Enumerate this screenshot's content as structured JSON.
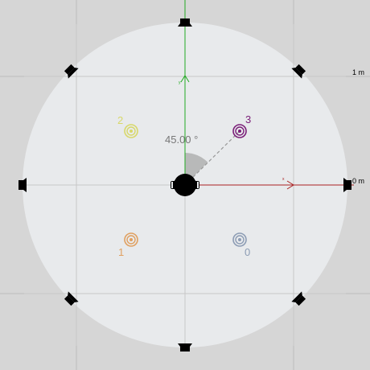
{
  "scale": {
    "outer_label": "1 m",
    "inner_label": "0 m"
  },
  "angle": {
    "readout": "45.00 °",
    "degrees": 45
  },
  "axes": {
    "x_label": "x",
    "y_label": "y",
    "x_color": "#aa2222",
    "y_color": "#22aa22"
  },
  "colors": {
    "background": "#d6d6d6",
    "disc": "#e8eaec",
    "grid": "#bcbcbc",
    "speaker": "#000000",
    "angle_wedge": "#a8a8a8"
  },
  "sources": [
    {
      "label": "0",
      "color": "#8c9cb4"
    },
    {
      "label": "1",
      "color": "#e0a060"
    },
    {
      "label": "2",
      "color": "#d8d86a"
    },
    {
      "label": "3",
      "color": "#7a1e78"
    }
  ],
  "speaker_count": 8,
  "listener": {
    "icon": "listener-head-icon"
  }
}
